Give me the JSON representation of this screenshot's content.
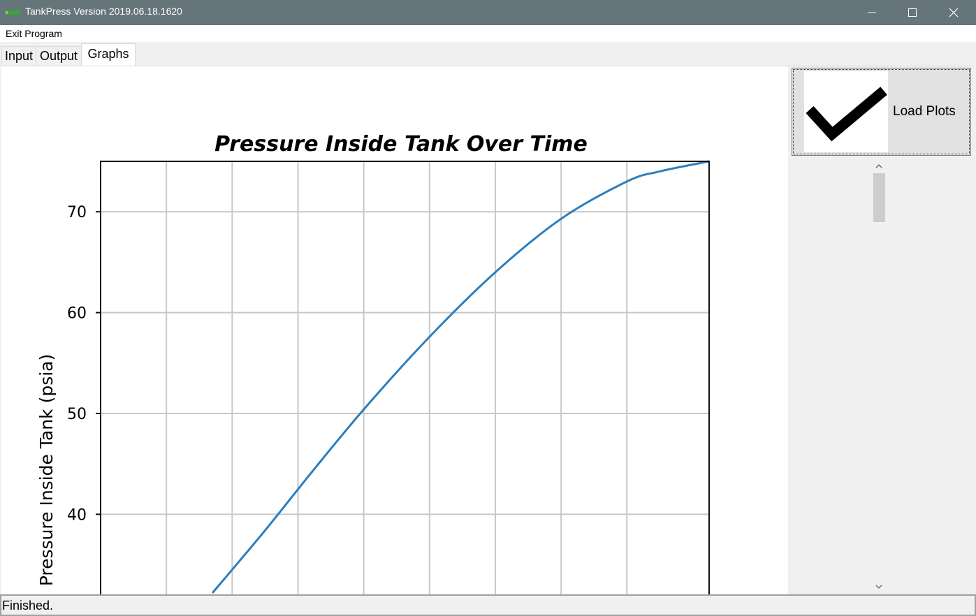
{
  "window": {
    "title": "TankPress Version 2019.06.18.1620",
    "controls": [
      "minimize-icon",
      "maximize-icon",
      "close-icon"
    ]
  },
  "menu": {
    "items": [
      "Exit Program"
    ]
  },
  "tabs": [
    {
      "label": "Input",
      "active": false
    },
    {
      "label": "Output",
      "active": false
    },
    {
      "label": "Graphs",
      "active": true
    }
  ],
  "sidebar": {
    "load_button_label": "Load Plots",
    "load_button_icon": "checkmark-icon"
  },
  "status": {
    "text": "Finished."
  },
  "colors": {
    "titlebar": "#66757a",
    "series": "#2e7ebc"
  },
  "chart_data": {
    "type": "line",
    "title": "Pressure Inside Tank Over Time",
    "ylabel": "Pressure Inside Tank (psia)",
    "xlabel": "",
    "y_ticks": [
      40,
      50,
      60,
      70
    ],
    "ylim": [
      32.2,
      75
    ],
    "xlim": [
      0,
      9.25
    ],
    "x_gridlines": [
      1,
      2,
      3,
      4,
      5,
      6,
      7,
      8
    ],
    "grid": true,
    "series": [
      {
        "x": [
          1.7,
          2.5,
          3.2,
          4.0,
          5.0,
          6.0,
          7.0,
          8.0,
          8.5,
          9.25
        ],
        "values": [
          32.2,
          38.4,
          44.1,
          50.4,
          57.6,
          64.0,
          69.3,
          73.0,
          74.0,
          75.0
        ]
      }
    ]
  }
}
